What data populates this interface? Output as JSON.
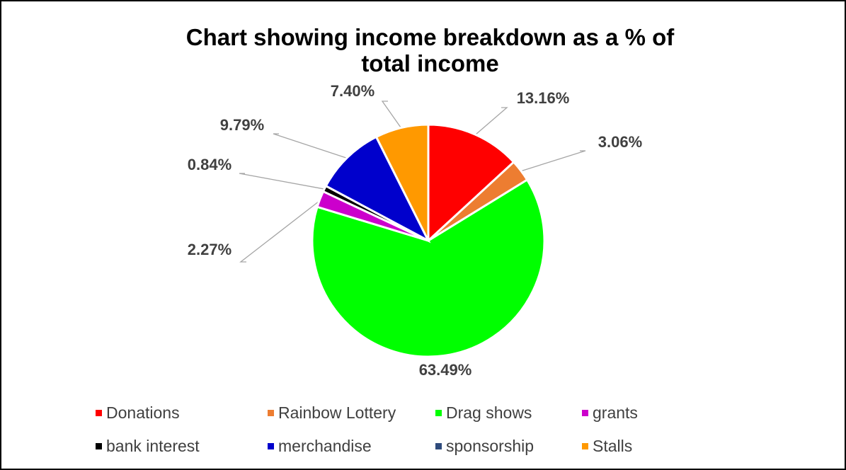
{
  "chart_data": {
    "type": "pie",
    "title": "Chart showing income breakdown as a % of total income",
    "categories": [
      "Donations",
      "Rainbow Lottery",
      "Drag shows",
      "grants",
      "bank interest",
      "merchandise",
      "sponsorship",
      "Stalls"
    ],
    "values": [
      13.16,
      3.06,
      63.49,
      2.27,
      0.84,
      9.79,
      0.0,
      7.4
    ],
    "data_labels": [
      "13.16%",
      "3.06%",
      "63.49%",
      "2.27%",
      "0.84%",
      "9.79%",
      "",
      "7.40%"
    ],
    "colors": [
      "#ff0000",
      "#ed7d31",
      "#00ff00",
      "#cc00cc",
      "#000000",
      "#0000cc",
      "#2f4b7c",
      "#ff9900"
    ],
    "legend_position": "bottom",
    "start_angle": "top, clockwise"
  }
}
